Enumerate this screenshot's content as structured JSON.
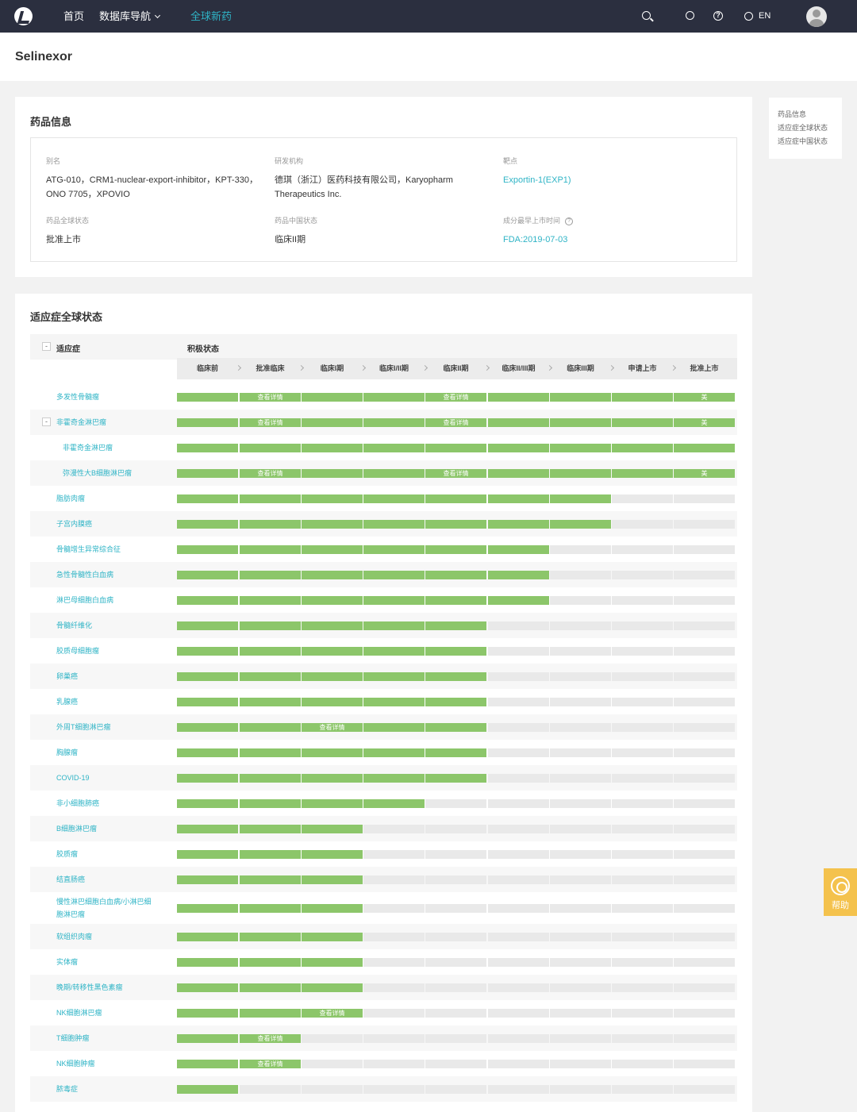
{
  "nav": {
    "home": "首页",
    "database_nav": "数据库导航",
    "global_new_drugs": "全球新药",
    "lang": "EN"
  },
  "drug": {
    "name": "Selinexor"
  },
  "info_card": {
    "title": "药品信息",
    "alias_label": "别名",
    "alias_line1": "ATG-010，CRM1-nuclear-export-inhibitor，KPT-330，",
    "alias_line2": "ONO 7705，XPOVIO",
    "org_label": "研发机构",
    "org_line1": "德琪（浙江）医药科技有限公司，Karyopharm",
    "org_line2": "Therapeutics Inc.",
    "target_label": "靶点",
    "target_value": "Exportin-1(EXP1)",
    "global_status_label": "药品全球状态",
    "global_status_value": "批准上市",
    "china_status_label": "药品中国状态",
    "china_status_value": "临床II期",
    "first_launch_label": "成分最早上市时间",
    "first_launch_value": "FDA:2019-07-03"
  },
  "anchor_nav": [
    "药品信息",
    "适应症全球状态",
    "适应症中国状态"
  ],
  "status_card": {
    "title": "适应症全球状态",
    "indication_header": "适应症",
    "status_header": "积极状态",
    "phases": [
      "临床前",
      "批准临床",
      "临床I期",
      "临床I/II期",
      "临床II期",
      "临床II/III期",
      "临床III期",
      "申请上市",
      "批准上市"
    ],
    "detail_label": "查看详情",
    "us_label": "美",
    "rows": [
      {
        "name": "多发性骨髓瘤",
        "level": 9,
        "details": [
          1,
          4
        ],
        "us": true
      },
      {
        "name": "非霍奇金淋巴瘤",
        "level": 9,
        "details": [
          1,
          4
        ],
        "us": true,
        "toggle": "-"
      },
      {
        "name": "非霍奇金淋巴瘤",
        "level": 9,
        "details": [],
        "indent": true
      },
      {
        "name": "弥漫性大B细胞淋巴瘤",
        "level": 9,
        "details": [
          1,
          4
        ],
        "us": true,
        "indent": true
      },
      {
        "name": "脂肪肉瘤",
        "level": 7,
        "details": []
      },
      {
        "name": "子宫内膜癌",
        "level": 7,
        "details": []
      },
      {
        "name": "骨髓增生异常综合征",
        "level": 6,
        "details": []
      },
      {
        "name": "急性骨髓性白血病",
        "level": 6,
        "details": []
      },
      {
        "name": "淋巴母细胞白血病",
        "level": 6,
        "details": []
      },
      {
        "name": "骨髓纤维化",
        "level": 5,
        "details": []
      },
      {
        "name": "胶质母细胞瘤",
        "level": 5,
        "details": []
      },
      {
        "name": "卵巢癌",
        "level": 5,
        "details": []
      },
      {
        "name": "乳腺癌",
        "level": 5,
        "details": []
      },
      {
        "name": "外周T细胞淋巴瘤",
        "level": 5,
        "details": [
          2
        ]
      },
      {
        "name": "胸腺瘤",
        "level": 5,
        "details": []
      },
      {
        "name": "COVID-19",
        "level": 5,
        "details": []
      },
      {
        "name": "非小细胞肺癌",
        "level": 4,
        "details": []
      },
      {
        "name": "B细胞淋巴瘤",
        "level": 3,
        "details": []
      },
      {
        "name": "胶质瘤",
        "level": 3,
        "details": []
      },
      {
        "name": "结直肠癌",
        "level": 3,
        "details": []
      },
      {
        "name": "慢性淋巴细胞白血病/小淋巴细胞淋巴瘤",
        "line1": "慢性淋巴细胞白血病/小淋巴细",
        "line2": "胞淋巴瘤",
        "level": 3,
        "details": [],
        "tall": true
      },
      {
        "name": "软组织肉瘤",
        "level": 3,
        "details": []
      },
      {
        "name": "实体瘤",
        "level": 3,
        "details": []
      },
      {
        "name": "晚期/转移性黑色素瘤",
        "level": 3,
        "details": []
      },
      {
        "name": "NK细胞淋巴瘤",
        "level": 3,
        "details": [
          2
        ]
      },
      {
        "name": "T细胞肿瘤",
        "level": 2,
        "details": [
          1
        ]
      },
      {
        "name": "NK细胞肿瘤",
        "level": 2,
        "details": [
          1
        ]
      },
      {
        "name": "脓毒症",
        "level": 1,
        "details": []
      }
    ]
  },
  "help": {
    "label": "帮助"
  }
}
